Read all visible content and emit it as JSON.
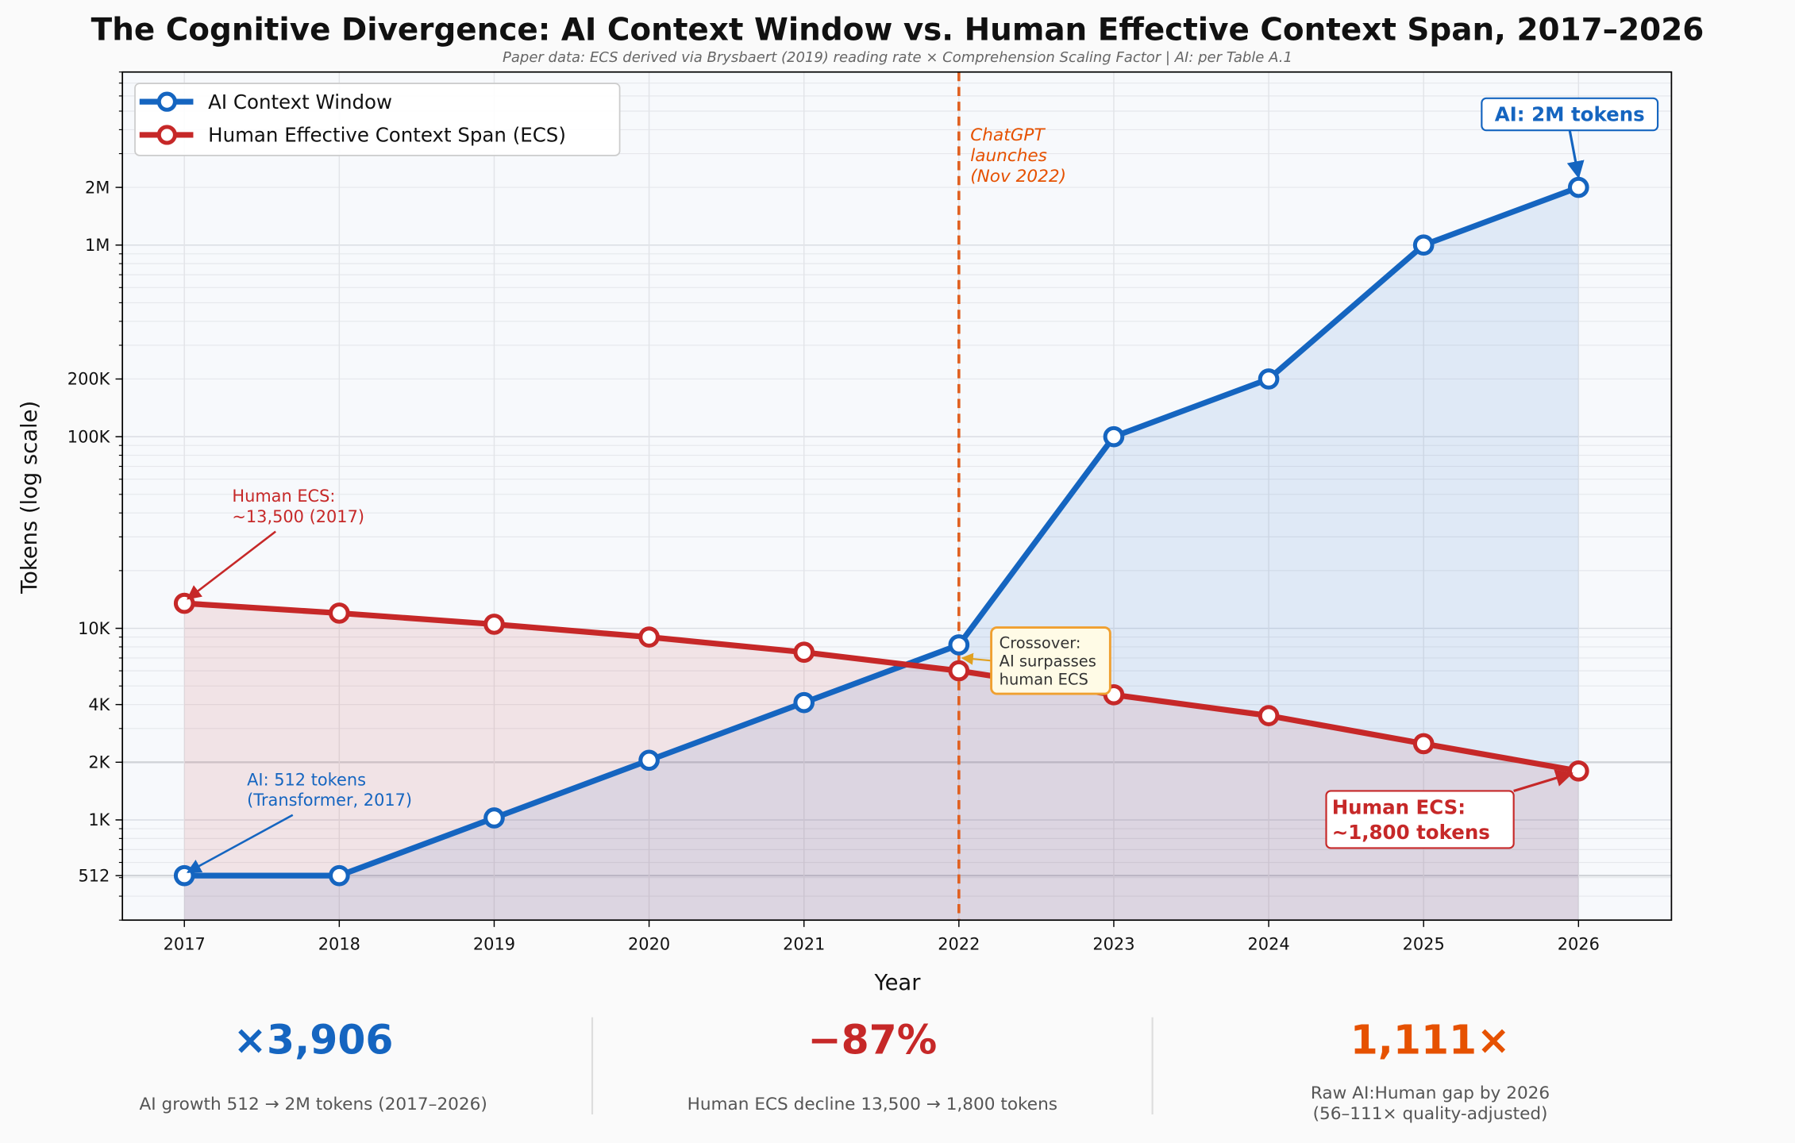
{
  "chart_data": {
    "type": "line",
    "title": "The Cognitive Divergence: AI Context Window vs. Human Effective Context Span, 2017–2026",
    "subtitle": "Paper data: ECS derived via Brysbaert (2019) reading rate × Comprehension Scaling Factor  |  AI: per Table A.1",
    "xlabel": "Year",
    "ylabel": "Tokens  (log scale)",
    "yscale": "log",
    "xlim": [
      2016.6,
      2026.6
    ],
    "ylim": [
      300,
      8000000
    ],
    "grid": true,
    "legend_placement": "top-left",
    "x": [
      2017,
      2018,
      2019,
      2020,
      2021,
      2022,
      2023,
      2024,
      2025,
      2026
    ],
    "x_tick_labels": [
      "2017",
      "2018",
      "2019",
      "2020",
      "2021",
      "2022",
      "2023",
      "2024",
      "2025",
      "2026"
    ],
    "y_ticks": [
      512,
      1000,
      2000,
      4000,
      10000,
      100000,
      200000,
      1000000,
      2000000
    ],
    "y_tick_labels": [
      "512",
      "1K",
      "2K",
      "4K",
      "10K",
      "100K",
      "200K",
      "1M",
      "2M"
    ],
    "series": [
      {
        "name": "AI Context Window",
        "color": "#1565c0",
        "values": [
          512,
          512,
          1024,
          2048,
          4096,
          8192,
          100000,
          200000,
          1000000,
          2000000
        ]
      },
      {
        "name": "Human Effective Context Span (ECS)",
        "color": "#c62828",
        "values": [
          13500,
          12000,
          10500,
          9000,
          7500,
          6000,
          4500,
          3500,
          2500,
          1800
        ]
      }
    ],
    "vline": {
      "x": 2022.0,
      "color": "#e06020",
      "label": [
        "ChatGPT",
        "launches",
        "(Nov 2022)"
      ]
    },
    "annotations": {
      "human_start": [
        "Human ECS:",
        "~13,500 (2017)"
      ],
      "ai_start": [
        "AI: 512 tokens",
        "(Transformer, 2017)"
      ],
      "crossover": [
        "Crossover:",
        "AI surpasses",
        "human ECS"
      ],
      "ai_end": "AI: 2M tokens",
      "human_end": [
        "Human ECS:",
        "~1,800 tokens"
      ]
    }
  },
  "stats": [
    {
      "value": "×3,906",
      "label": [
        "AI growth  512 → 2M tokens  (2017–2026)"
      ],
      "color": "#1565c0"
    },
    {
      "value": "−87%",
      "label": [
        "Human ECS decline  13,500 → 1,800 tokens"
      ],
      "color": "#c62828"
    },
    {
      "value": "1,111×",
      "label": [
        "Raw AI:Human gap by 2026",
        "(56–111× quality-adjusted)"
      ],
      "color": "#e65100"
    }
  ]
}
